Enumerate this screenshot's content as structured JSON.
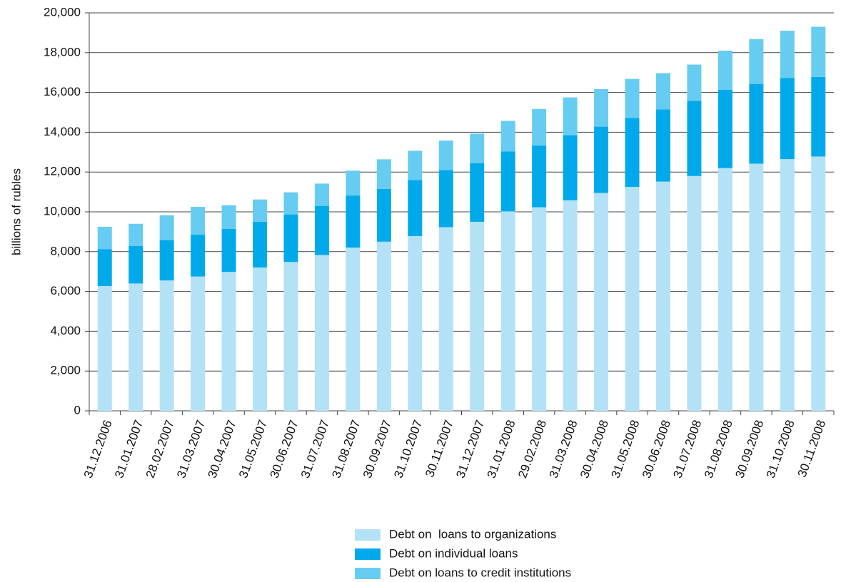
{
  "chart_data": {
    "type": "stacked_bar",
    "y_label": "billions of rubles",
    "categories": [
      "31.12.2006",
      "31.01.2007",
      "28.02.2007",
      "31.03.2007",
      "30.04.2007",
      "31.05.2007",
      "30.06.2007",
      "31.07.2007",
      "31.08.2007",
      "30.09.2007",
      "31.10.2007",
      "30.11.2007",
      "31.12.2007",
      "31.01.2008",
      "29.02.2008",
      "31.03.2008",
      "30.04.2008",
      "31.05.2008",
      "30.06.2008",
      "31.07.2008",
      "31.08.2008",
      "30.09.2008",
      "31.10.2008",
      "30.11.2008"
    ],
    "series": [
      {
        "name": "Debt on  loans to organizations",
        "color": "#b3e2f7",
        "values": [
          6270,
          6400,
          6550,
          6750,
          6980,
          7200,
          7480,
          7830,
          8200,
          8500,
          8780,
          9230,
          9500,
          10020,
          10230,
          10580,
          10950,
          11250,
          11520,
          11800,
          12200,
          12420,
          12650,
          12780
        ]
      },
      {
        "name": "Debt on individual loans",
        "color": "#00aaea",
        "values": [
          1860,
          1880,
          2030,
          2100,
          2170,
          2300,
          2390,
          2470,
          2620,
          2650,
          2820,
          2870,
          2950,
          3010,
          3100,
          3270,
          3330,
          3470,
          3630,
          3780,
          3930,
          4010,
          4070,
          4000
        ]
      },
      {
        "name": "Debt on loans to credit institutions",
        "color": "#66ccf2",
        "values": [
          1120,
          1120,
          1250,
          1400,
          1180,
          1120,
          1110,
          1120,
          1250,
          1490,
          1470,
          1480,
          1480,
          1540,
          1840,
          1900,
          1890,
          1960,
          1820,
          1820,
          1970,
          2250,
          2380,
          2520
        ]
      }
    ],
    "ylim": [
      0,
      20000
    ],
    "yticks": [
      0,
      {
        "value": 2000,
        "label": "2,000"
      },
      {
        "value": 4000,
        "label": "4,000"
      },
      {
        "value": 6000,
        "label": "6,000"
      },
      {
        "value": 8000,
        "label": "8,000"
      },
      {
        "value": 10000,
        "label": "10,000"
      },
      {
        "value": 12000,
        "label": "12,000"
      },
      {
        "value": 14000,
        "label": "14,000"
      },
      {
        "value": 16000,
        "label": "16,000"
      },
      {
        "value": 18000,
        "label": "18,000"
      },
      {
        "value": 20000,
        "label": "20,000"
      }
    ],
    "grid": true
  }
}
